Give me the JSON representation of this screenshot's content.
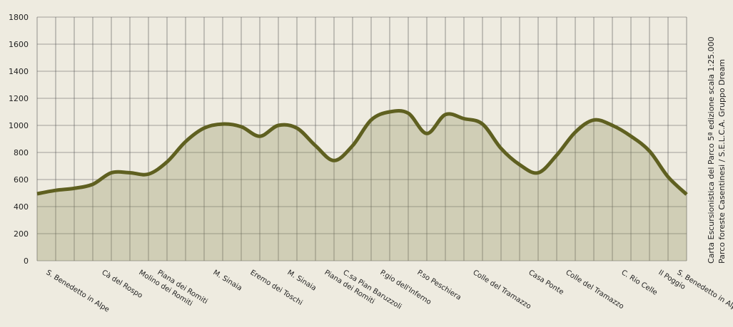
{
  "chart_data": {
    "type": "line",
    "categories": [
      "S. Benedetto in Alpe",
      null,
      null,
      "Cà del Rospo",
      null,
      "Molino dei Romiti",
      "Piana dei Romiti",
      null,
      null,
      "M. Sinaia",
      null,
      "Eremo dei Toschi",
      null,
      "M. Sinaia",
      null,
      "Piana dei Romiti",
      "C.sa Pian Baruzzoli",
      null,
      "P.gio dell'Inferno",
      null,
      "P.so Peschiera",
      null,
      null,
      "Colle del Tramazzo",
      null,
      null,
      "Casa Ponte",
      null,
      "Colle del Tramazzo",
      null,
      null,
      "C. Rio Celle",
      null,
      "Il Poggio",
      "S. Benedetto in Alpe",
      null
    ],
    "series": [
      {
        "color": "#5f6020",
        "values": [
          495,
          520,
          535,
          565,
          650,
          650,
          640,
          730,
          880,
          980,
          1010,
          990,
          920,
          1000,
          980,
          850,
          740,
          850,
          1040,
          1100,
          1090,
          940,
          1080,
          1050,
          1010,
          830,
          710,
          650,
          780,
          950,
          1040,
          1000,
          920,
          810,
          620,
          490
        ]
      }
    ],
    "ylim": [
      0,
      1800
    ],
    "yticks": [
      0,
      200,
      400,
      600,
      800,
      1000,
      1200,
      1400,
      1600,
      1800
    ],
    "grid": true,
    "source": [
      "Carta Escursionistica del Parco 5ª edizione scala 1:25.000",
      "Parco foreste Casentinesi / S.E.L.C.A. Gruppo Dream"
    ]
  }
}
